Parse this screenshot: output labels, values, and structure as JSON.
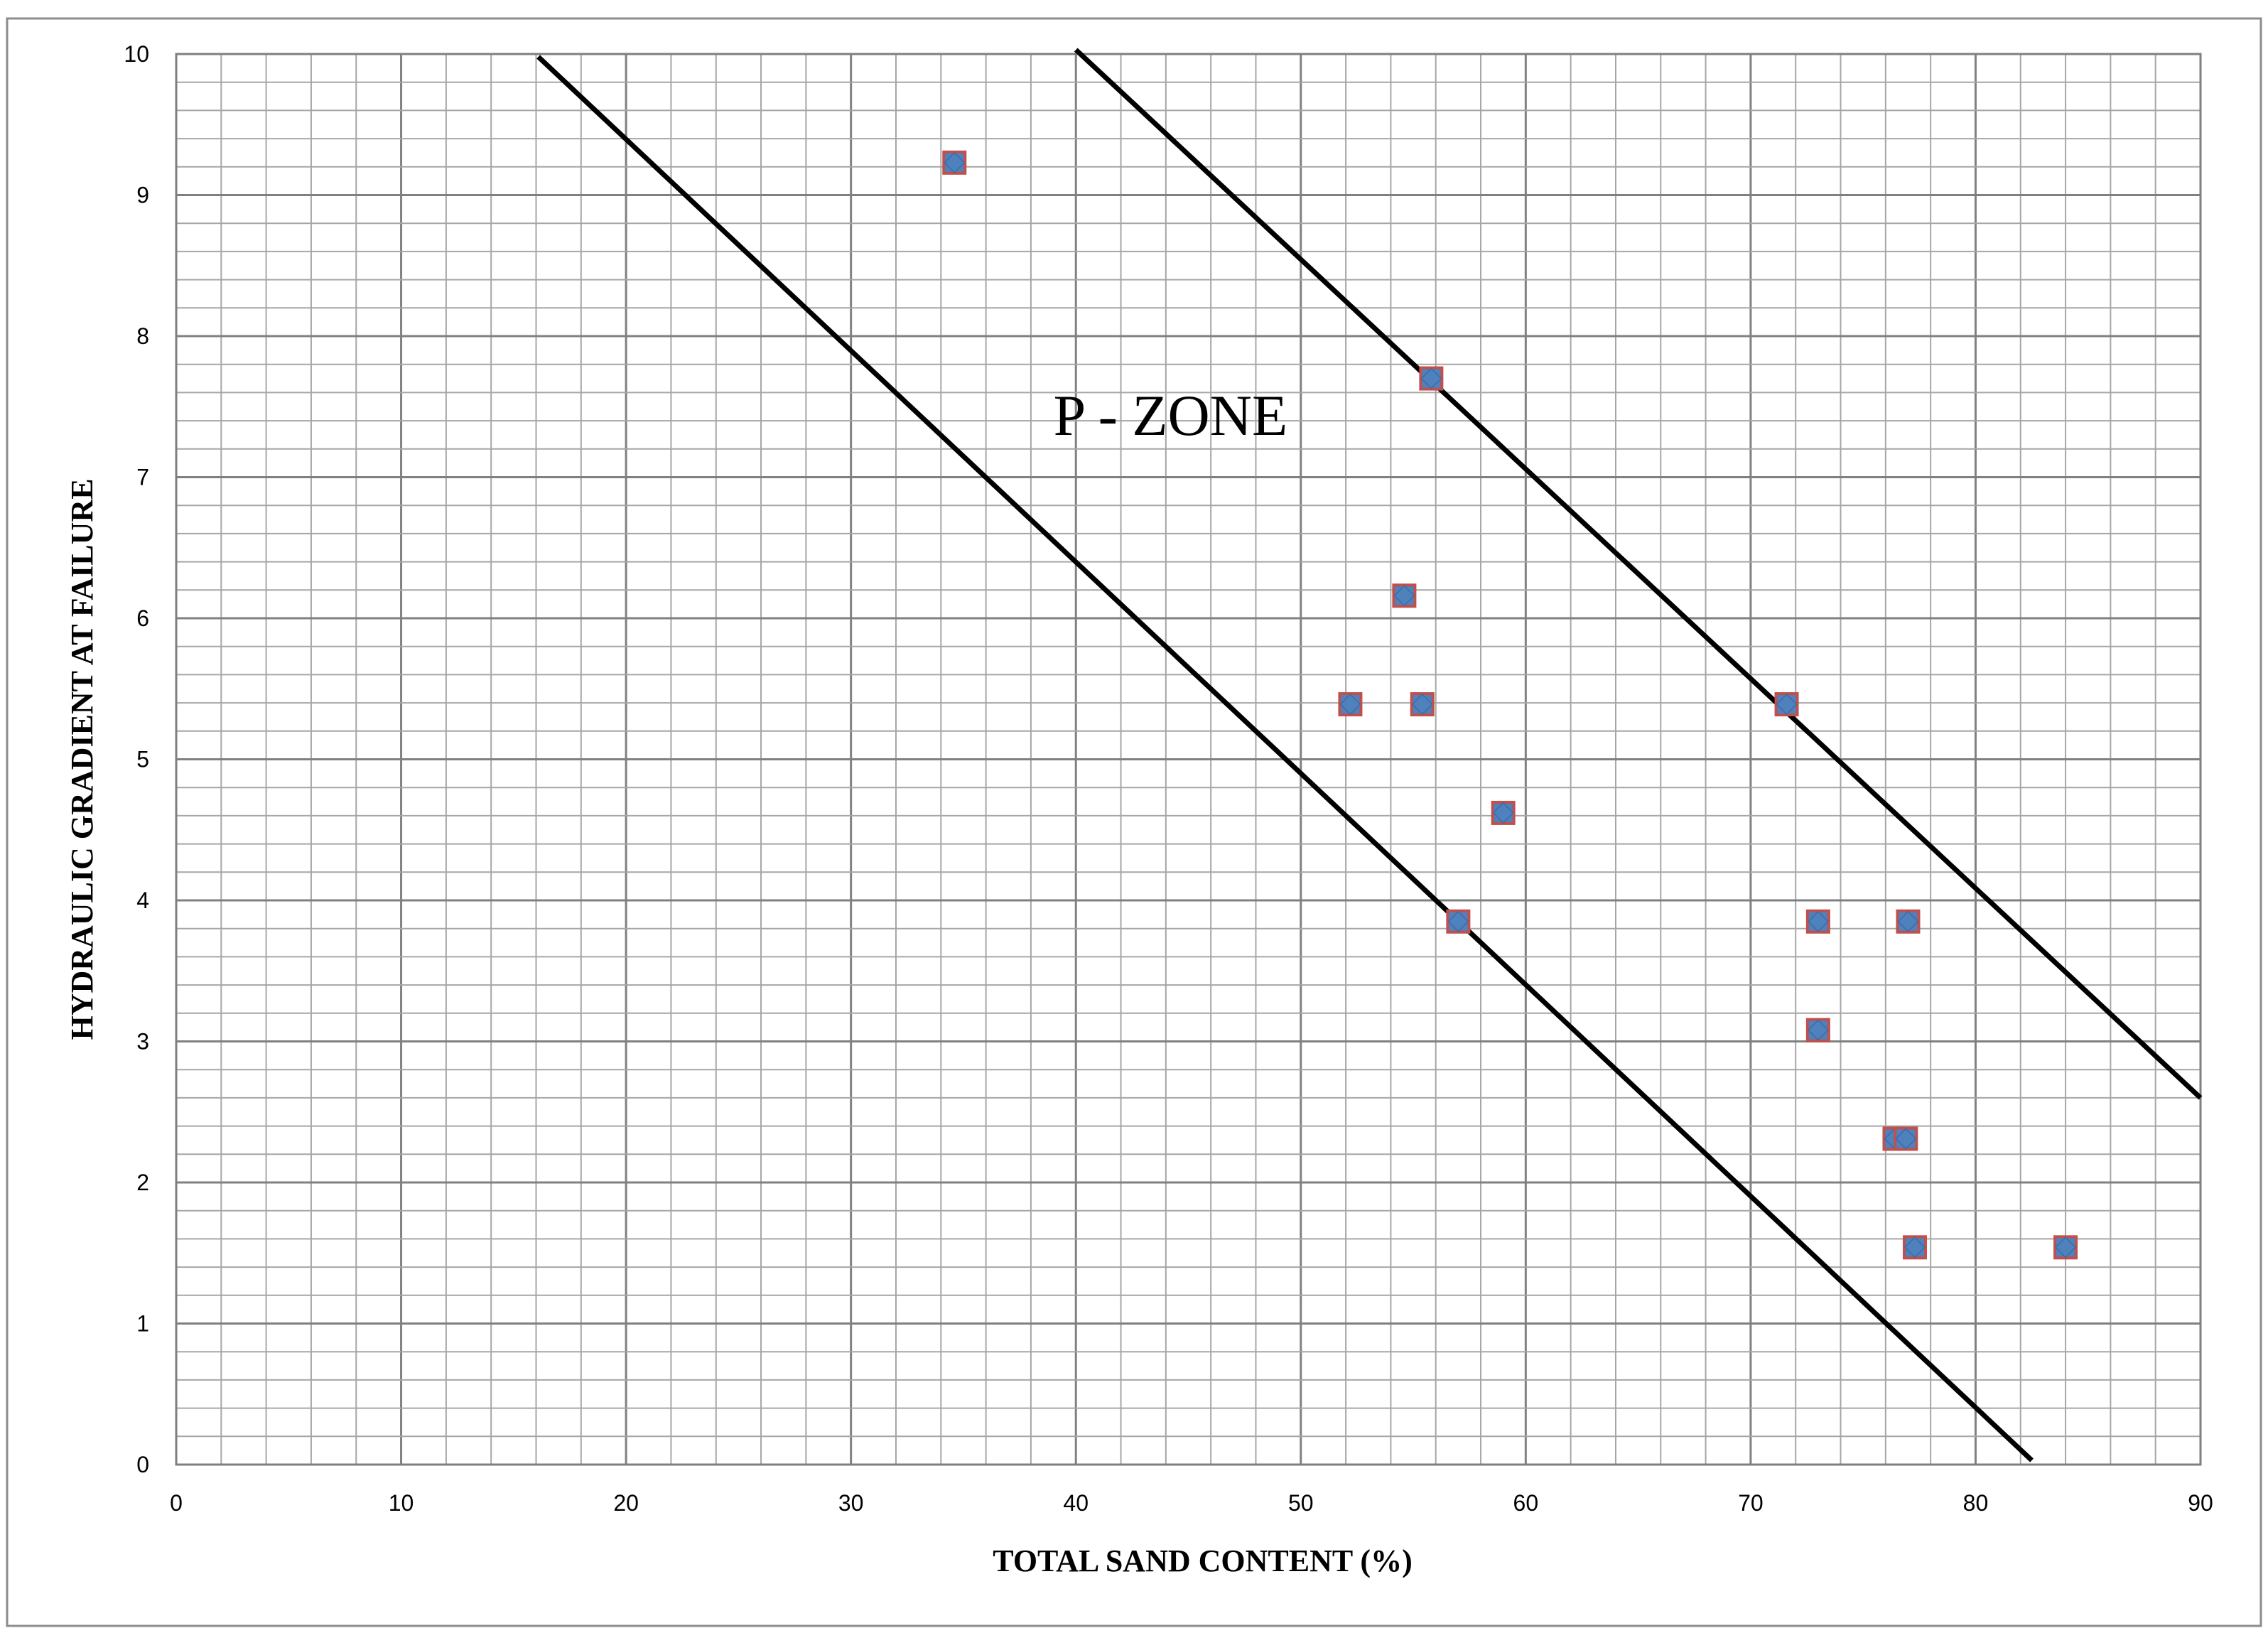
{
  "chart_data": {
    "type": "scatter",
    "xlabel": "TOTAL  SAND  CONTENT (%)",
    "ylabel": "HYDRAULIC GRADIENT  AT  FAILURE",
    "xlim": [
      0,
      90
    ],
    "ylim": [
      0,
      10
    ],
    "x_ticks": [
      "0",
      "10",
      "20",
      "30",
      "40",
      "50",
      "60",
      "70",
      "80",
      "90"
    ],
    "y_ticks": [
      "0",
      "1",
      "2",
      "3",
      "4",
      "5",
      "6",
      "7",
      "8",
      "9",
      "10"
    ],
    "grid": true,
    "points": [
      {
        "x": 34.6,
        "y": 9.23
      },
      {
        "x": 55.8,
        "y": 7.7
      },
      {
        "x": 54.6,
        "y": 6.16
      },
      {
        "x": 52.2,
        "y": 5.39
      },
      {
        "x": 55.4,
        "y": 5.39
      },
      {
        "x": 71.6,
        "y": 5.39
      },
      {
        "x": 59.0,
        "y": 4.62
      },
      {
        "x": 57.0,
        "y": 3.85
      },
      {
        "x": 73.0,
        "y": 3.85
      },
      {
        "x": 77.0,
        "y": 3.85
      },
      {
        "x": 73.0,
        "y": 3.08
      },
      {
        "x": 76.4,
        "y": 2.31
      },
      {
        "x": 76.9,
        "y": 2.31
      },
      {
        "x": 77.3,
        "y": 1.54
      },
      {
        "x": 84.0,
        "y": 1.54
      }
    ],
    "boundary_lines": [
      {
        "x1": 16.1,
        "y1": 9.98,
        "x2": 82.5,
        "y2": 0.03
      },
      {
        "x1": 40.0,
        "y1": 10.03,
        "x2": 90.0,
        "y2": 2.6
      }
    ],
    "annotations": [
      {
        "text": "P - ZONE",
        "x": 39.0,
        "y": 7.3
      }
    ],
    "colors": {
      "marker_fill": "#4f81bd",
      "marker_edge": "#c0504d",
      "line": "#000000",
      "grid_minor": "#a6a6a6",
      "grid_major": "#808080"
    }
  }
}
